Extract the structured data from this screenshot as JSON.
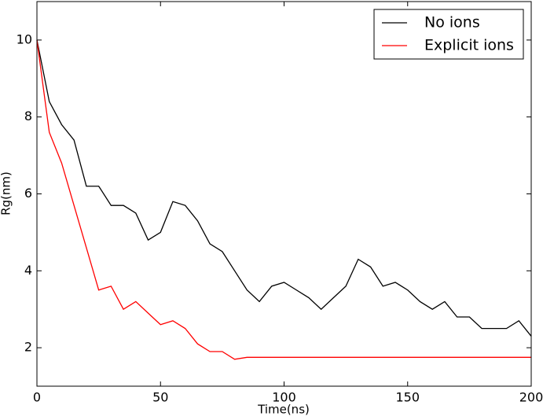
{
  "chart_data": {
    "type": "line",
    "x_label": "Time(ns)",
    "y_label": "Rg(nm)",
    "x": [
      0,
      5,
      10,
      15,
      20,
      25,
      30,
      35,
      40,
      45,
      50,
      55,
      60,
      65,
      70,
      75,
      80,
      85,
      90,
      95,
      100,
      105,
      110,
      115,
      120,
      125,
      130,
      135,
      140,
      145,
      150,
      155,
      160,
      165,
      170,
      175,
      180,
      185,
      190,
      195,
      200
    ],
    "series": [
      {
        "name": "No ions",
        "color": "#000000",
        "values": [
          10,
          8.4,
          7.8,
          7.4,
          6.2,
          6.2,
          5.7,
          5.7,
          5.5,
          4.8,
          5.0,
          5.8,
          5.7,
          5.3,
          4.7,
          4.5,
          4.0,
          3.5,
          3.2,
          3.6,
          3.7,
          3.5,
          3.3,
          3.0,
          3.3,
          3.6,
          4.3,
          4.1,
          3.6,
          3.7,
          3.5,
          3.2,
          3.0,
          3.2,
          2.8,
          2.8,
          2.5,
          2.5,
          2.5,
          2.7,
          2.3
        ]
      },
      {
        "name": "Explicit ions",
        "color": "#ff0000",
        "values": [
          10,
          7.6,
          6.8,
          5.7,
          4.6,
          3.5,
          3.6,
          3.0,
          3.2,
          2.9,
          2.6,
          2.7,
          2.5,
          2.1,
          1.9,
          1.9,
          1.7,
          1.75,
          1.75,
          1.75,
          1.75,
          1.75,
          1.75,
          1.75,
          1.75,
          1.75,
          1.75,
          1.75,
          1.75,
          1.75,
          1.75,
          1.75,
          1.75,
          1.75,
          1.75,
          1.75,
          1.75,
          1.75,
          1.75,
          1.75,
          1.75
        ]
      }
    ],
    "xlim": [
      0,
      200
    ],
    "xticks": [
      0,
      50,
      100,
      150,
      200
    ],
    "ylim": [
      1,
      11
    ],
    "yticks": [
      2,
      4,
      6,
      8,
      10
    ],
    "legend": "upper right"
  }
}
